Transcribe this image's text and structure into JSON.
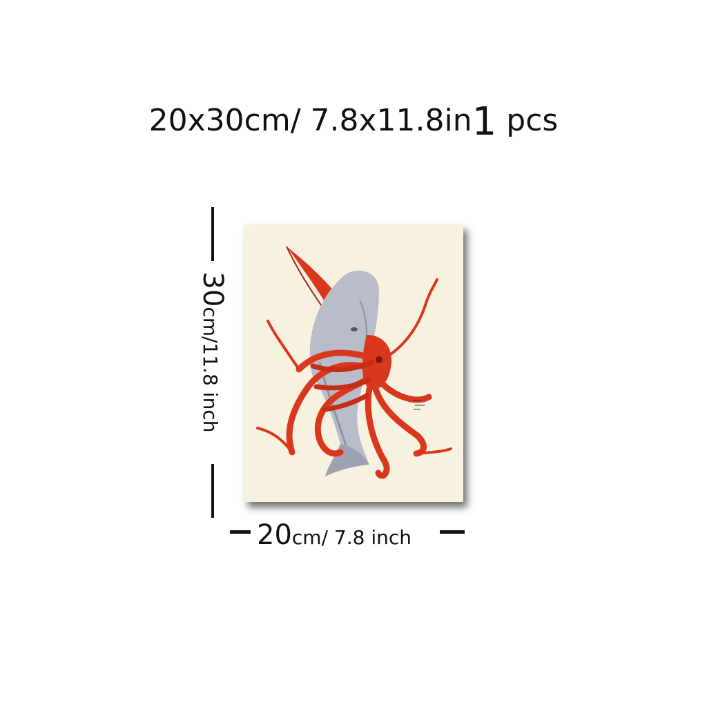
{
  "headline": {
    "size_text": "20x30cm/ 7.8x11.8in",
    "quantity_number": "1",
    "quantity_unit": "pcs"
  },
  "height_label": {
    "number": "30",
    "unit_text": "cm/11.8 inch"
  },
  "width_label": {
    "number": "20",
    "unit_text": "cm/ 7.8 inch"
  },
  "artwork": {
    "subject_icon": "sperm-whale-and-giant-squid-illustration",
    "colors": {
      "paper": "#f7f2e0",
      "whale": "#b9bcc9",
      "whale_shadow": "#8f93a3",
      "squid": "#d9381e",
      "squid_dark": "#a8230f"
    }
  }
}
